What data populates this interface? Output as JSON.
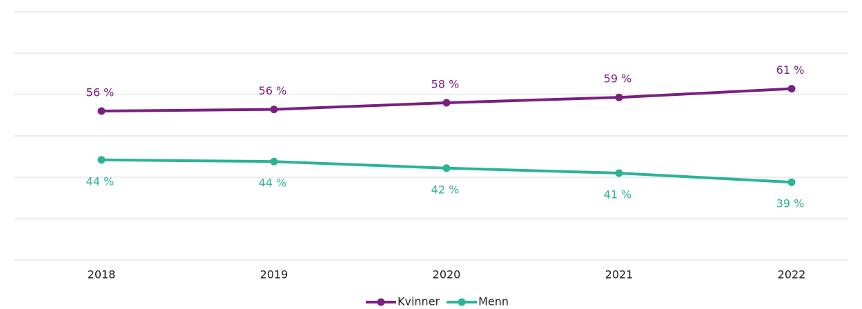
{
  "chart_data": {
    "type": "line",
    "x": [
      "2018",
      "2019",
      "2020",
      "2021",
      "2022"
    ],
    "series": [
      {
        "name": "Kvinner",
        "color": "#7a1f80",
        "values": [
          56,
          56.4,
          58,
          59.3,
          61.4
        ],
        "value_labels": [
          "56 %",
          "56 %",
          "58 %",
          "59 %",
          "61 %"
        ]
      },
      {
        "name": "Menn",
        "color": "#2bb39a",
        "values": [
          44.2,
          43.8,
          42.2,
          41,
          38.8
        ],
        "value_labels": [
          "44 %",
          "44 %",
          "42 %",
          "41 %",
          "39 %"
        ]
      }
    ],
    "ylim": [
      20,
      80
    ],
    "yticks": [
      20,
      30,
      40,
      50,
      60,
      70,
      80
    ],
    "grid": true,
    "legend": "bottom"
  }
}
